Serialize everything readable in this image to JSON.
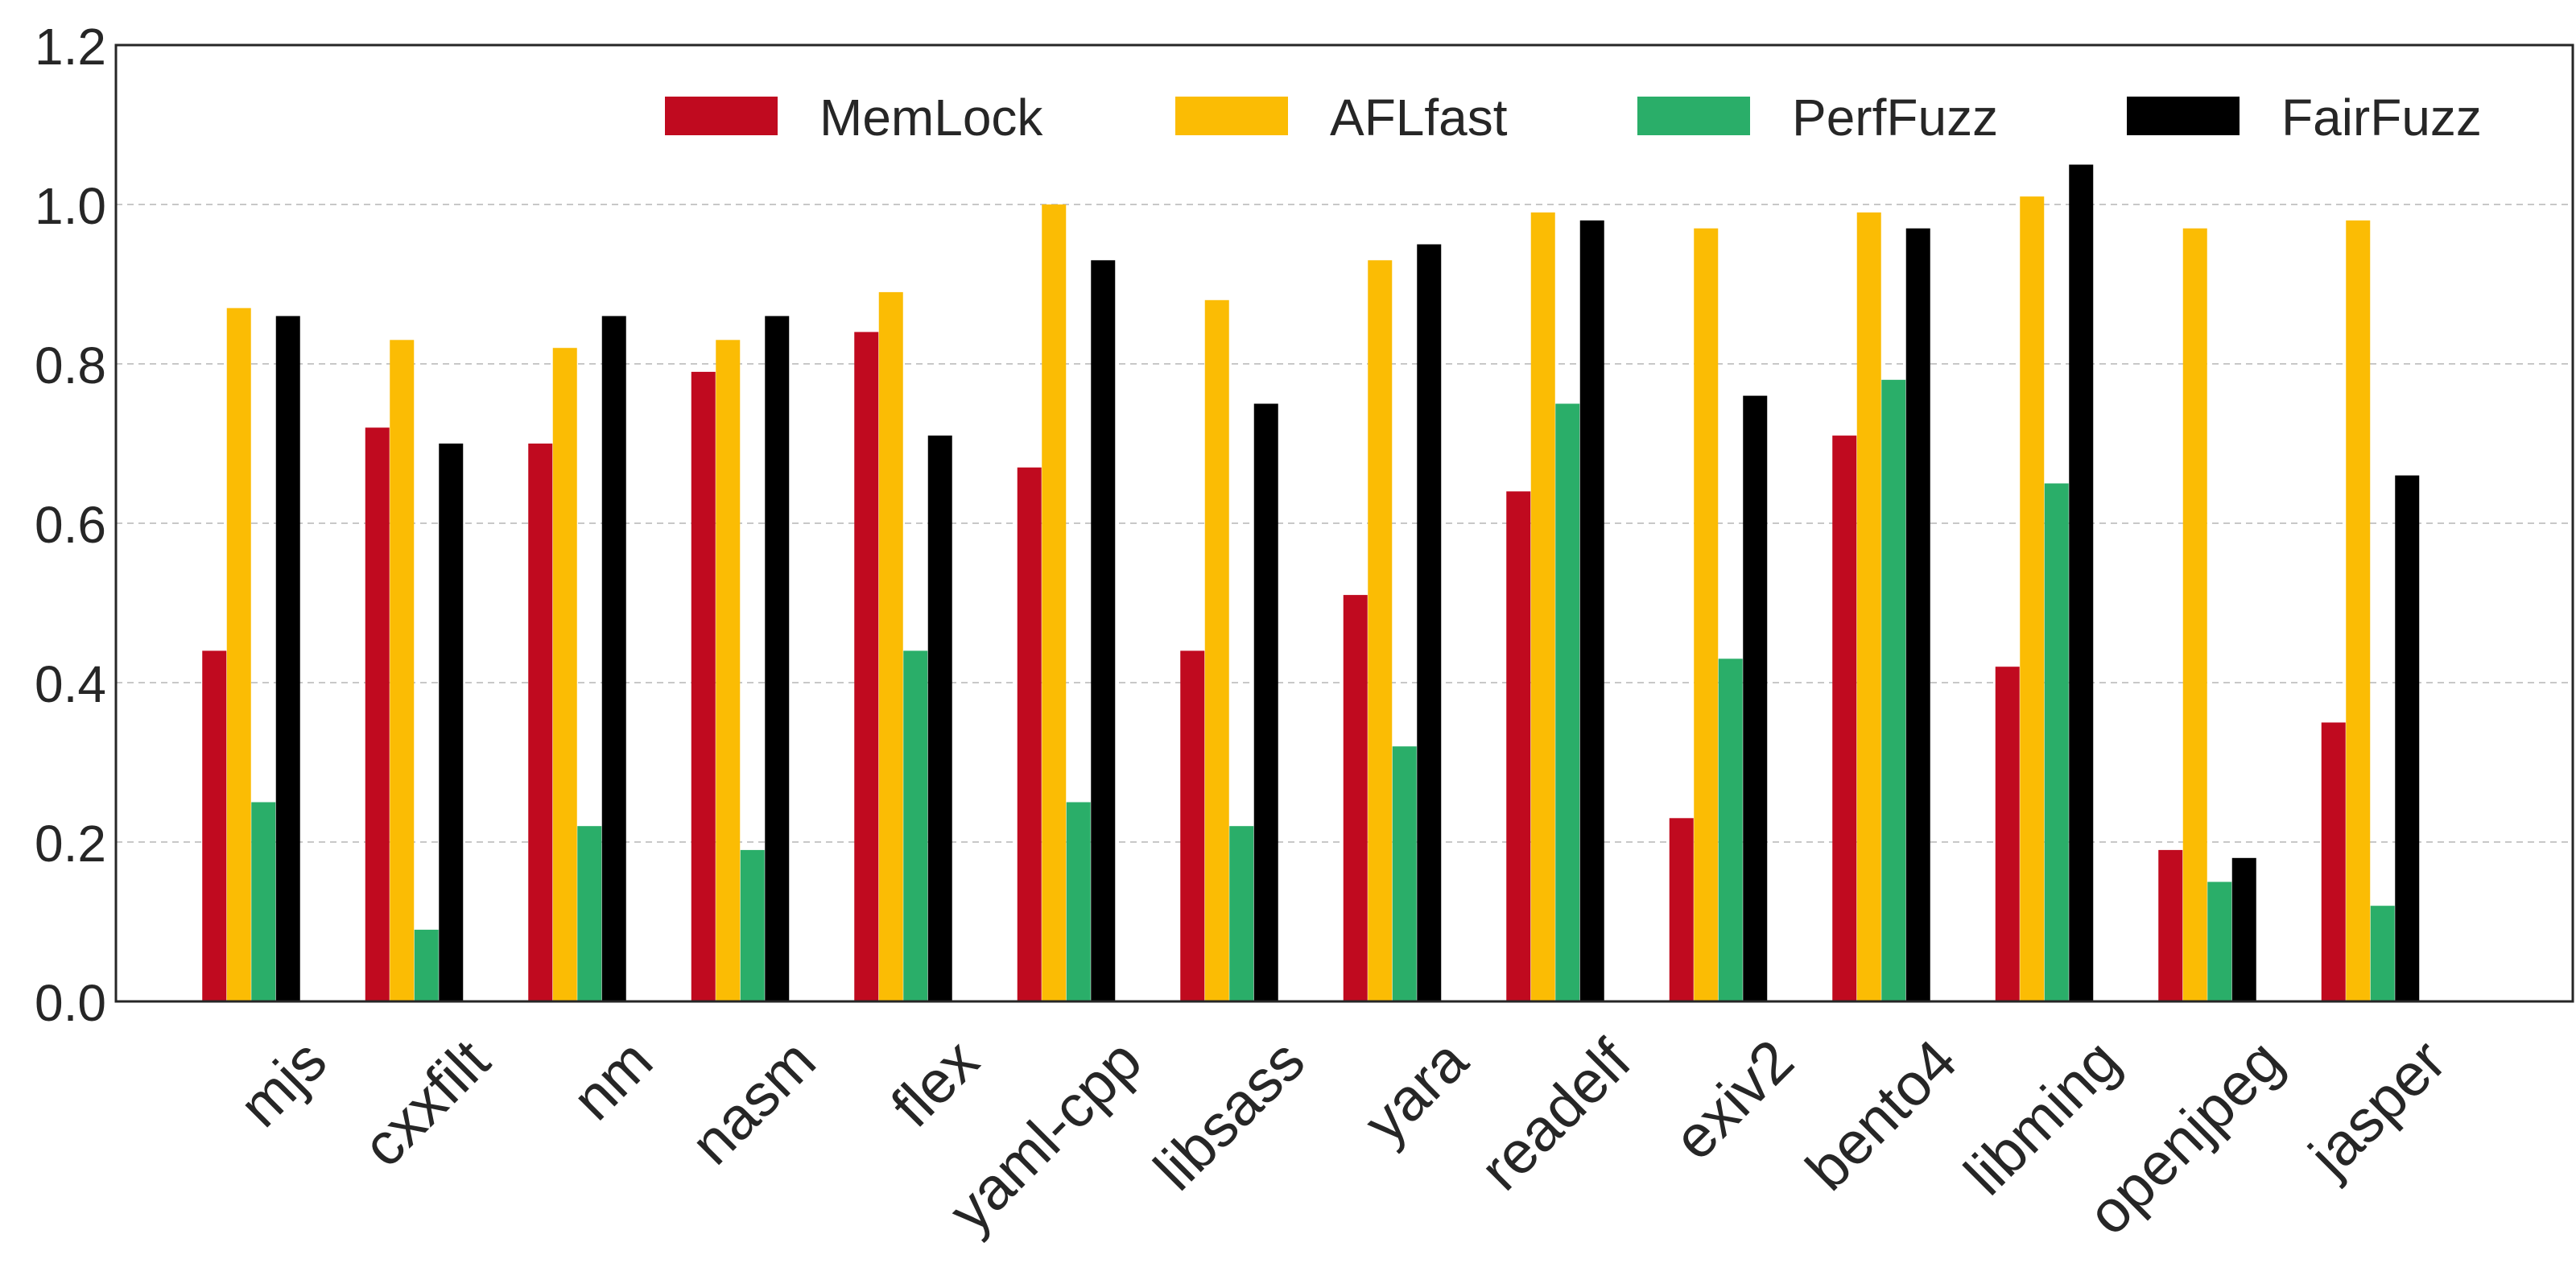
{
  "chart_data": {
    "type": "bar",
    "categories": [
      "mjs",
      "cxxfilt",
      "nm",
      "nasm",
      "flex",
      "yaml-cpp",
      "libsass",
      "yara",
      "readelf",
      "exiv2",
      "bento4",
      "libming",
      "openjpeg",
      "jasper"
    ],
    "series": [
      {
        "name": "MemLock",
        "color": "#c00a1f",
        "values": [
          0.44,
          0.72,
          0.7,
          0.79,
          0.84,
          0.67,
          0.44,
          0.51,
          0.64,
          0.23,
          0.71,
          0.42,
          0.19,
          0.35
        ]
      },
      {
        "name": "AFLfast",
        "color": "#fbbc04",
        "values": [
          0.87,
          0.83,
          0.82,
          0.83,
          0.89,
          1.0,
          0.88,
          0.93,
          0.99,
          0.97,
          0.99,
          1.01,
          0.97,
          0.98
        ]
      },
      {
        "name": "PerfFuzz",
        "color": "#2aae69",
        "values": [
          0.25,
          0.09,
          0.22,
          0.19,
          0.44,
          0.25,
          0.22,
          0.32,
          0.75,
          0.43,
          0.78,
          0.65,
          0.15,
          0.12
        ]
      },
      {
        "name": "FairFuzz",
        "color": "#000000",
        "values": [
          0.86,
          0.7,
          0.86,
          0.86,
          0.71,
          0.93,
          0.75,
          0.95,
          0.98,
          0.76,
          0.97,
          1.05,
          0.18,
          0.66
        ]
      }
    ],
    "title": "",
    "xlabel": "",
    "ylabel": "",
    "ylim": [
      0.0,
      1.2
    ],
    "yticks": [
      "0.0",
      "0.2",
      "0.4",
      "0.6",
      "0.8",
      "1.0",
      "1.2"
    ],
    "grid": "horizontal dashed",
    "legend_position": "top-right"
  }
}
